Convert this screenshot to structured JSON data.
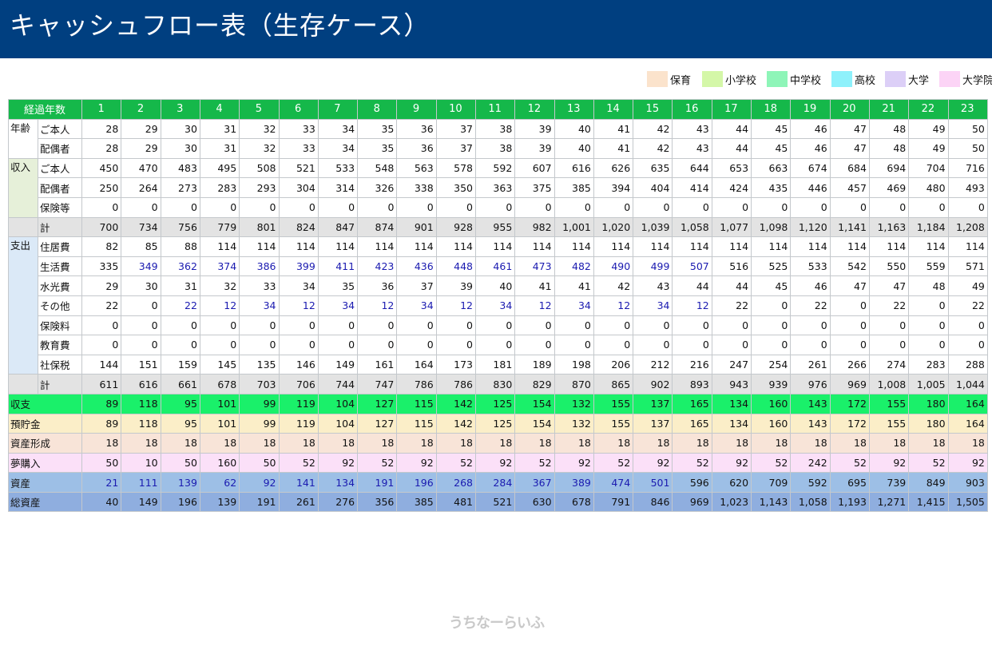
{
  "header": {
    "title": "キャッシュフロー表（生存ケース）"
  },
  "legend": [
    {
      "label": "保育",
      "color": "#fbe3cc"
    },
    {
      "label": "小学校",
      "color": "#d4f7a8"
    },
    {
      "label": "中学校",
      "color": "#8ef5b8"
    },
    {
      "label": "高校",
      "color": "#8ef1fb"
    },
    {
      "label": "大学",
      "color": "#dccff7"
    },
    {
      "label": "大学院",
      "color": "#fcd4f6"
    }
  ],
  "table": {
    "header_label": "経過年数",
    "years": [
      "1",
      "2",
      "3",
      "4",
      "5",
      "6",
      "7",
      "8",
      "9",
      "10",
      "11",
      "12",
      "13",
      "14",
      "15",
      "16",
      "17",
      "18",
      "19",
      "20",
      "21",
      "22",
      "23"
    ],
    "sections": [
      {
        "group": "年齢",
        "style": "age",
        "rows": [
          {
            "label": "ご本人",
            "values": [
              "28",
              "29",
              "30",
              "31",
              "32",
              "33",
              "34",
              "35",
              "36",
              "37",
              "38",
              "39",
              "40",
              "41",
              "42",
              "43",
              "44",
              "45",
              "46",
              "47",
              "48",
              "49",
              "50"
            ],
            "blue": []
          },
          {
            "label": "配偶者",
            "values": [
              "28",
              "29",
              "30",
              "31",
              "32",
              "33",
              "34",
              "35",
              "36",
              "37",
              "38",
              "39",
              "40",
              "41",
              "42",
              "43",
              "44",
              "45",
              "46",
              "47",
              "48",
              "49",
              "50"
            ],
            "blue": []
          }
        ]
      },
      {
        "group": "収入",
        "style": "inc",
        "rows": [
          {
            "label": "ご本人",
            "values": [
              "450",
              "470",
              "483",
              "495",
              "508",
              "521",
              "533",
              "548",
              "563",
              "578",
              "592",
              "607",
              "616",
              "626",
              "635",
              "644",
              "653",
              "663",
              "674",
              "684",
              "694",
              "704",
              "716"
            ],
            "blue": []
          },
          {
            "label": "配偶者",
            "values": [
              "250",
              "264",
              "273",
              "283",
              "293",
              "304",
              "314",
              "326",
              "338",
              "350",
              "363",
              "375",
              "385",
              "394",
              "404",
              "414",
              "424",
              "435",
              "446",
              "457",
              "469",
              "480",
              "493"
            ],
            "blue": []
          },
          {
            "label": "保険等",
            "values": [
              "0",
              "0",
              "0",
              "0",
              "0",
              "0",
              "0",
              "0",
              "0",
              "0",
              "0",
              "0",
              "0",
              "0",
              "0",
              "0",
              "0",
              "0",
              "0",
              "0",
              "0",
              "0",
              "0"
            ],
            "blue": []
          }
        ],
        "total": {
          "label": "計",
          "values": [
            "700",
            "734",
            "756",
            "779",
            "801",
            "824",
            "847",
            "874",
            "901",
            "928",
            "955",
            "982",
            "1,001",
            "1,020",
            "1,039",
            "1,058",
            "1,077",
            "1,098",
            "1,120",
            "1,141",
            "1,163",
            "1,184",
            "1,208"
          ]
        }
      },
      {
        "group": "支出",
        "style": "exp",
        "rows": [
          {
            "label": "住居費",
            "values": [
              "82",
              "85",
              "88",
              "114",
              "114",
              "114",
              "114",
              "114",
              "114",
              "114",
              "114",
              "114",
              "114",
              "114",
              "114",
              "114",
              "114",
              "114",
              "114",
              "114",
              "114",
              "114",
              "114"
            ],
            "blue": []
          },
          {
            "label": "生活費",
            "values": [
              "335",
              "349",
              "362",
              "374",
              "386",
              "399",
              "411",
              "423",
              "436",
              "448",
              "461",
              "473",
              "482",
              "490",
              "499",
              "507",
              "516",
              "525",
              "533",
              "542",
              "550",
              "559",
              "571"
            ],
            "blue": [
              1,
              2,
              3,
              4,
              5,
              6,
              7,
              8,
              9,
              10,
              11,
              12,
              13,
              14,
              15
            ]
          },
          {
            "label": "水光費",
            "values": [
              "29",
              "30",
              "31",
              "32",
              "33",
              "34",
              "35",
              "36",
              "37",
              "39",
              "40",
              "41",
              "41",
              "42",
              "43",
              "44",
              "44",
              "45",
              "46",
              "47",
              "47",
              "48",
              "49"
            ],
            "blue": []
          },
          {
            "label": "その他",
            "values": [
              "22",
              "0",
              "22",
              "12",
              "34",
              "12",
              "34",
              "12",
              "34",
              "12",
              "34",
              "12",
              "34",
              "12",
              "34",
              "12",
              "22",
              "0",
              "22",
              "0",
              "22",
              "0",
              "22"
            ],
            "blue": [
              2,
              3,
              4,
              5,
              6,
              7,
              8,
              9,
              10,
              11,
              12,
              13,
              14,
              15
            ]
          },
          {
            "label": "保険料",
            "values": [
              "0",
              "0",
              "0",
              "0",
              "0",
              "0",
              "0",
              "0",
              "0",
              "0",
              "0",
              "0",
              "0",
              "0",
              "0",
              "0",
              "0",
              "0",
              "0",
              "0",
              "0",
              "0",
              "0"
            ],
            "blue": []
          },
          {
            "label": "教育費",
            "values": [
              "0",
              "0",
              "0",
              "0",
              "0",
              "0",
              "0",
              "0",
              "0",
              "0",
              "0",
              "0",
              "0",
              "0",
              "0",
              "0",
              "0",
              "0",
              "0",
              "0",
              "0",
              "0",
              "0"
            ],
            "blue": []
          },
          {
            "label": "社保税",
            "values": [
              "144",
              "151",
              "159",
              "145",
              "135",
              "146",
              "149",
              "161",
              "164",
              "173",
              "181",
              "189",
              "198",
              "206",
              "212",
              "216",
              "247",
              "254",
              "261",
              "266",
              "274",
              "283",
              "288"
            ],
            "blue": []
          }
        ],
        "total": {
          "label": "計",
          "values": [
            "611",
            "616",
            "661",
            "678",
            "703",
            "706",
            "744",
            "747",
            "786",
            "786",
            "830",
            "829",
            "870",
            "865",
            "902",
            "893",
            "943",
            "939",
            "976",
            "969",
            "1,008",
            "1,005",
            "1,044"
          ]
        }
      }
    ],
    "summary": [
      {
        "label": "収支",
        "style": "balance",
        "values": [
          "89",
          "118",
          "95",
          "101",
          "99",
          "119",
          "104",
          "127",
          "115",
          "142",
          "125",
          "154",
          "132",
          "155",
          "137",
          "165",
          "134",
          "160",
          "143",
          "172",
          "155",
          "180",
          "164"
        ],
        "blue": []
      },
      {
        "label": "預貯金",
        "style": "savings",
        "values": [
          "89",
          "118",
          "95",
          "101",
          "99",
          "119",
          "104",
          "127",
          "115",
          "142",
          "125",
          "154",
          "132",
          "155",
          "137",
          "165",
          "134",
          "160",
          "143",
          "172",
          "155",
          "180",
          "164"
        ],
        "blue": []
      },
      {
        "label": "資産形成",
        "style": "assetform",
        "values": [
          "18",
          "18",
          "18",
          "18",
          "18",
          "18",
          "18",
          "18",
          "18",
          "18",
          "18",
          "18",
          "18",
          "18",
          "18",
          "18",
          "18",
          "18",
          "18",
          "18",
          "18",
          "18",
          "18"
        ],
        "blue": []
      },
      {
        "label": "夢購入",
        "style": "dream",
        "values": [
          "50",
          "10",
          "50",
          "160",
          "50",
          "52",
          "92",
          "52",
          "92",
          "52",
          "92",
          "52",
          "92",
          "52",
          "92",
          "52",
          "92",
          "52",
          "242",
          "52",
          "92",
          "52",
          "92"
        ],
        "blue": []
      },
      {
        "label": "資産",
        "style": "assets",
        "values": [
          "21",
          "111",
          "139",
          "62",
          "92",
          "141",
          "134",
          "191",
          "196",
          "268",
          "284",
          "367",
          "389",
          "474",
          "501",
          "596",
          "620",
          "709",
          "592",
          "695",
          "739",
          "849",
          "903"
        ],
        "blue": [
          0,
          1,
          2,
          3,
          4,
          5,
          6,
          7,
          8,
          9,
          10,
          11,
          12,
          13,
          14
        ]
      },
      {
        "label": "総資産",
        "style": "totalassets",
        "values": [
          "40",
          "149",
          "196",
          "139",
          "191",
          "261",
          "276",
          "356",
          "385",
          "481",
          "521",
          "630",
          "678",
          "791",
          "846",
          "969",
          "1,023",
          "1,143",
          "1,058",
          "1,193",
          "1,271",
          "1,415",
          "1,505"
        ],
        "blue": []
      }
    ]
  },
  "watermark": "うちなーらいふ"
}
